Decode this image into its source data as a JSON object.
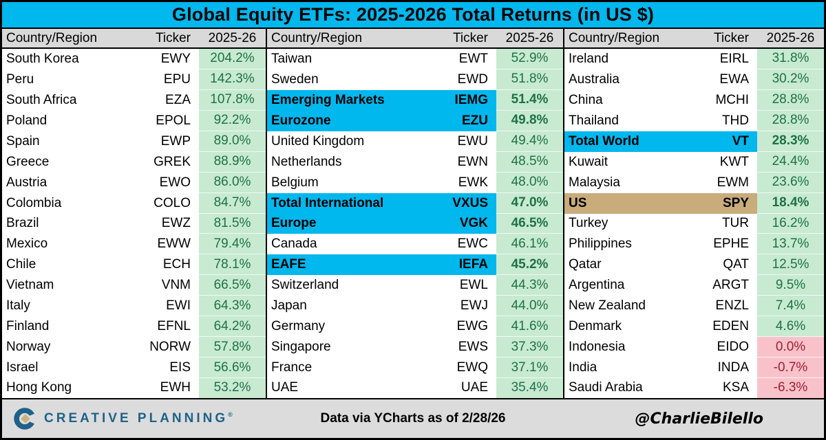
{
  "title": "Global Equity ETFs: 2025-2026 Total Returns (in US $)",
  "colors": {
    "accent_cyan": "#00B7EE",
    "highlight_tan": "#C8AC7C",
    "positive_bg": "#C7EAD1",
    "positive_text": "#1E7145",
    "negative_bg": "#F9C2CA",
    "negative_text": "#9C1F2E",
    "header_gray": "#D9D9D9",
    "footer_gray": "#DCDCDC",
    "logo_blue": "#1E6189",
    "logo_tan": "#C9B180"
  },
  "chart_data": {
    "type": "table",
    "title": "Global Equity ETFs: 2025-2026 Total Returns (in US $)",
    "columns": {
      "country": "Country/Region",
      "ticker": "Ticker",
      "period": "2025-26"
    },
    "groups": [
      {
        "rows": [
          {
            "country": "South Korea",
            "ticker": "EWY",
            "value": "204.2%",
            "tone": "pos",
            "highlight": "none"
          },
          {
            "country": "Peru",
            "ticker": "EPU",
            "value": "142.3%",
            "tone": "pos",
            "highlight": "none"
          },
          {
            "country": "South Africa",
            "ticker": "EZA",
            "value": "107.8%",
            "tone": "pos",
            "highlight": "none"
          },
          {
            "country": "Poland",
            "ticker": "EPOL",
            "value": "92.2%",
            "tone": "pos",
            "highlight": "none"
          },
          {
            "country": "Spain",
            "ticker": "EWP",
            "value": "89.0%",
            "tone": "pos",
            "highlight": "none"
          },
          {
            "country": "Greece",
            "ticker": "GREK",
            "value": "88.9%",
            "tone": "pos",
            "highlight": "none"
          },
          {
            "country": "Austria",
            "ticker": "EWO",
            "value": "86.0%",
            "tone": "pos",
            "highlight": "none"
          },
          {
            "country": "Colombia",
            "ticker": "COLO",
            "value": "84.7%",
            "tone": "pos",
            "highlight": "none"
          },
          {
            "country": "Brazil",
            "ticker": "EWZ",
            "value": "81.5%",
            "tone": "pos",
            "highlight": "none"
          },
          {
            "country": "Mexico",
            "ticker": "EWW",
            "value": "79.4%",
            "tone": "pos",
            "highlight": "none"
          },
          {
            "country": "Chile",
            "ticker": "ECH",
            "value": "78.1%",
            "tone": "pos",
            "highlight": "none"
          },
          {
            "country": "Vietnam",
            "ticker": "VNM",
            "value": "66.5%",
            "tone": "pos",
            "highlight": "none"
          },
          {
            "country": "Italy",
            "ticker": "EWI",
            "value": "64.3%",
            "tone": "pos",
            "highlight": "none"
          },
          {
            "country": "Finland",
            "ticker": "EFNL",
            "value": "64.2%",
            "tone": "pos",
            "highlight": "none"
          },
          {
            "country": "Norway",
            "ticker": "NORW",
            "value": "57.8%",
            "tone": "pos",
            "highlight": "none"
          },
          {
            "country": "Israel",
            "ticker": "EIS",
            "value": "56.6%",
            "tone": "pos",
            "highlight": "none"
          },
          {
            "country": "Hong Kong",
            "ticker": "EWH",
            "value": "53.2%",
            "tone": "pos",
            "highlight": "none"
          }
        ]
      },
      {
        "rows": [
          {
            "country": "Taiwan",
            "ticker": "EWT",
            "value": "52.9%",
            "tone": "pos",
            "highlight": "none"
          },
          {
            "country": "Sweden",
            "ticker": "EWD",
            "value": "51.8%",
            "tone": "pos",
            "highlight": "none"
          },
          {
            "country": "Emerging Markets",
            "ticker": "IEMG",
            "value": "51.4%",
            "tone": "pos",
            "highlight": "cyan"
          },
          {
            "country": "Eurozone",
            "ticker": "EZU",
            "value": "49.8%",
            "tone": "pos",
            "highlight": "cyan"
          },
          {
            "country": "United Kingdom",
            "ticker": "EWU",
            "value": "49.4%",
            "tone": "pos",
            "highlight": "none"
          },
          {
            "country": "Netherlands",
            "ticker": "EWN",
            "value": "48.5%",
            "tone": "pos",
            "highlight": "none"
          },
          {
            "country": "Belgium",
            "ticker": "EWK",
            "value": "48.0%",
            "tone": "pos",
            "highlight": "none"
          },
          {
            "country": "Total International",
            "ticker": "VXUS",
            "value": "47.0%",
            "tone": "pos",
            "highlight": "cyan"
          },
          {
            "country": "Europe",
            "ticker": "VGK",
            "value": "46.5%",
            "tone": "pos",
            "highlight": "cyan"
          },
          {
            "country": "Canada",
            "ticker": "EWC",
            "value": "46.1%",
            "tone": "pos",
            "highlight": "none"
          },
          {
            "country": "EAFE",
            "ticker": "IEFA",
            "value": "45.2%",
            "tone": "pos",
            "highlight": "cyan"
          },
          {
            "country": "Switzerland",
            "ticker": "EWL",
            "value": "44.3%",
            "tone": "pos",
            "highlight": "none"
          },
          {
            "country": "Japan",
            "ticker": "EWJ",
            "value": "44.0%",
            "tone": "pos",
            "highlight": "none"
          },
          {
            "country": "Germany",
            "ticker": "EWG",
            "value": "41.6%",
            "tone": "pos",
            "highlight": "none"
          },
          {
            "country": "Singapore",
            "ticker": "EWS",
            "value": "37.3%",
            "tone": "pos",
            "highlight": "none"
          },
          {
            "country": "France",
            "ticker": "EWQ",
            "value": "37.1%",
            "tone": "pos",
            "highlight": "none"
          },
          {
            "country": "UAE",
            "ticker": "UAE",
            "value": "35.4%",
            "tone": "pos",
            "highlight": "none"
          }
        ]
      },
      {
        "rows": [
          {
            "country": "Ireland",
            "ticker": "EIRL",
            "value": "31.8%",
            "tone": "pos",
            "highlight": "none"
          },
          {
            "country": "Australia",
            "ticker": "EWA",
            "value": "30.2%",
            "tone": "pos",
            "highlight": "none"
          },
          {
            "country": "China",
            "ticker": "MCHI",
            "value": "28.8%",
            "tone": "pos",
            "highlight": "none"
          },
          {
            "country": "Thailand",
            "ticker": "THD",
            "value": "28.8%",
            "tone": "pos",
            "highlight": "none"
          },
          {
            "country": "Total World",
            "ticker": "VT",
            "value": "28.3%",
            "tone": "pos",
            "highlight": "cyan"
          },
          {
            "country": "Kuwait",
            "ticker": "KWT",
            "value": "24.4%",
            "tone": "pos",
            "highlight": "none"
          },
          {
            "country": "Malaysia",
            "ticker": "EWM",
            "value": "23.6%",
            "tone": "pos",
            "highlight": "none"
          },
          {
            "country": "US",
            "ticker": "SPY",
            "value": "18.4%",
            "tone": "pos",
            "highlight": "tan"
          },
          {
            "country": "Turkey",
            "ticker": "TUR",
            "value": "16.2%",
            "tone": "pos",
            "highlight": "none"
          },
          {
            "country": "Philippines",
            "ticker": "EPHE",
            "value": "13.7%",
            "tone": "pos",
            "highlight": "none"
          },
          {
            "country": "Qatar",
            "ticker": "QAT",
            "value": "12.5%",
            "tone": "pos",
            "highlight": "none"
          },
          {
            "country": "Argentina",
            "ticker": "ARGT",
            "value": "9.5%",
            "tone": "pos",
            "highlight": "none"
          },
          {
            "country": "New Zealand",
            "ticker": "ENZL",
            "value": "7.4%",
            "tone": "pos",
            "highlight": "none"
          },
          {
            "country": "Denmark",
            "ticker": "EDEN",
            "value": "4.6%",
            "tone": "pos",
            "highlight": "none"
          },
          {
            "country": "Indonesia",
            "ticker": "EIDO",
            "value": "0.0%",
            "tone": "neg",
            "highlight": "none"
          },
          {
            "country": "India",
            "ticker": "INDA",
            "value": "-0.7%",
            "tone": "neg",
            "highlight": "none"
          },
          {
            "country": "Saudi Arabia",
            "ticker": "KSA",
            "value": "-6.3%",
            "tone": "neg",
            "highlight": "none"
          }
        ]
      }
    ]
  },
  "footer": {
    "logo_text": "CREATIVE PLANNING",
    "logo_mark": "®",
    "source": "Data via YCharts as of 2/28/26",
    "handle": "@CharlieBilello"
  }
}
